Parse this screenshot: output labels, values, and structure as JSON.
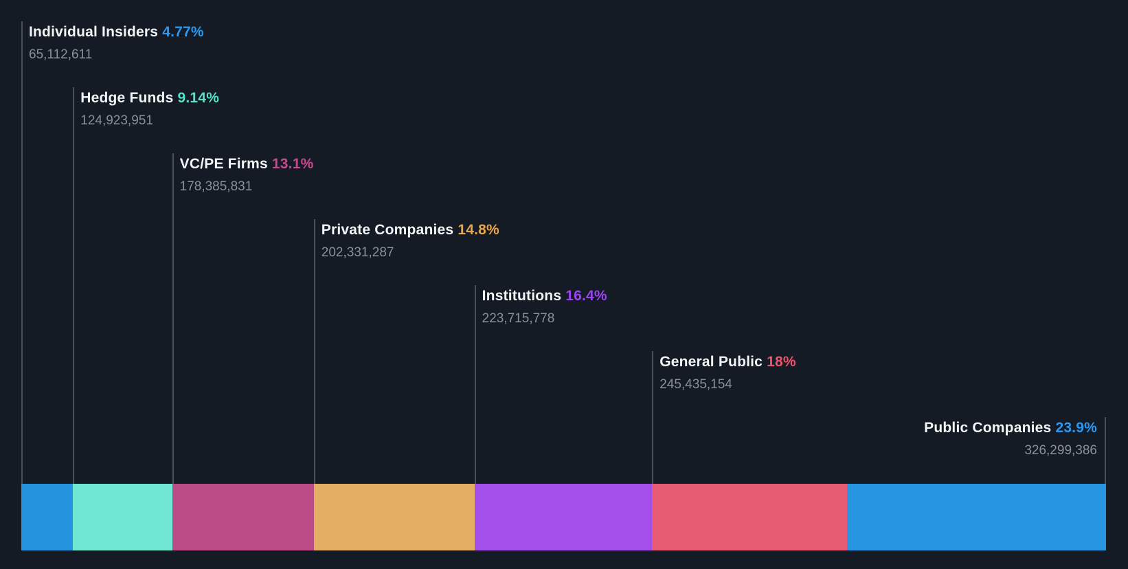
{
  "chart_data": {
    "type": "bar",
    "variant": "horizontal-stacked-ownership-breakdown",
    "title": "",
    "xlabel": "",
    "ylabel": "",
    "legend": "none",
    "axes": "none",
    "grid": false,
    "colors": {
      "background": "#151B24",
      "label_text": "#F2F5F7",
      "shares_text": "#8C9197",
      "leader_line": "#4A5058"
    },
    "segments": [
      {
        "label": "Individual Insiders",
        "percent": 4.77,
        "percent_label": "4.77%",
        "shares": 65112611,
        "shares_label": "65,112,611",
        "bar_color": "#2593DE",
        "percent_color": "#2B98F2"
      },
      {
        "label": "Hedge Funds",
        "percent": 9.14,
        "percent_label": "9.14%",
        "shares": 124923951,
        "shares_label": "124,923,951",
        "bar_color": "#6FE7D2",
        "percent_color": "#53E2C8"
      },
      {
        "label": "VC/PE Firms",
        "percent": 13.1,
        "percent_label": "13.1%",
        "shares": 178385831,
        "shares_label": "178,385,831",
        "bar_color": "#BB4B86",
        "percent_color": "#C9488E"
      },
      {
        "label": "Private Companies",
        "percent": 14.8,
        "percent_label": "14.8%",
        "shares": 202331287,
        "shares_label": "202,331,287",
        "bar_color": "#E5AF63",
        "percent_color": "#EBA64A"
      },
      {
        "label": "Institutions",
        "percent": 16.4,
        "percent_label": "16.4%",
        "shares": 223715778,
        "shares_label": "223,715,778",
        "bar_color": "#A44FE9",
        "percent_color": "#9A45F0"
      },
      {
        "label": "General Public",
        "percent": 18,
        "percent_label": "18%",
        "shares": 245435154,
        "shares_label": "245,435,154",
        "bar_color": "#E75C72",
        "percent_color": "#E9566E"
      },
      {
        "label": "Public Companies",
        "percent": 23.9,
        "percent_label": "23.9%",
        "shares": 326299386,
        "shares_label": "326,299,386",
        "bar_color": "#2795E2",
        "percent_color": "#2B98F2"
      }
    ]
  }
}
